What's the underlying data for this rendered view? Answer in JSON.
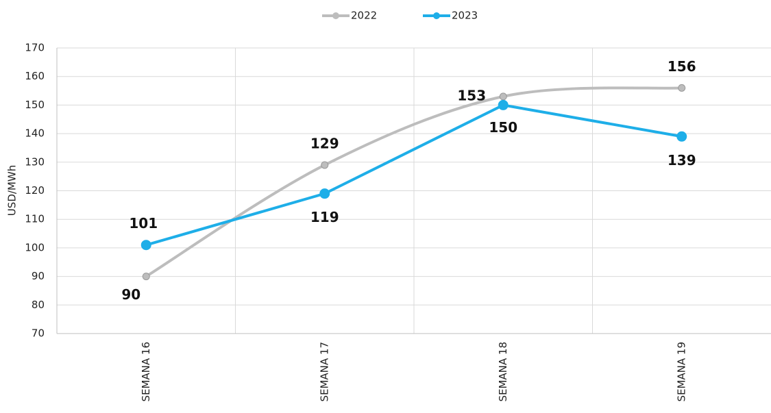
{
  "chart_data": {
    "type": "line",
    "y_label": "USD/MWh",
    "categories": [
      "SEMANA 16",
      "SEMANA 17",
      "SEMANA 18",
      "SEMANA 19"
    ],
    "series": [
      {
        "name": "2022",
        "color": "#bdbdbd",
        "values": [
          90,
          129,
          153,
          156
        ],
        "smooth": true
      },
      {
        "name": "2023",
        "color": "#1eaee8",
        "values": [
          101,
          119,
          150,
          139
        ],
        "smooth": false
      }
    ],
    "ylim": [
      70,
      170
    ],
    "yticks": [
      70,
      80,
      90,
      100,
      110,
      120,
      130,
      140,
      150,
      160,
      170
    ],
    "grid": true
  }
}
